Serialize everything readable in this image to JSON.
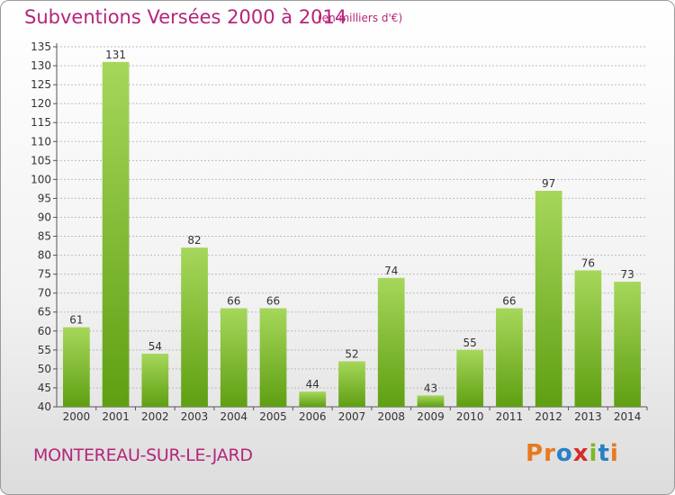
{
  "header": {
    "title": "Subventions Versées 2000 à 2014",
    "subtitle": "(en milliers d'€)"
  },
  "footer": {
    "commune": "MONTEREAU-SUR-LE-JARD",
    "logo": "Proxiti",
    "logo_colors": [
      "#e8791e",
      "#e8791e",
      "#2b7fc4",
      "#d62b2b",
      "#7cb92b",
      "#2b7fc4",
      "#e8791e"
    ]
  },
  "colors": {
    "title": "#b5257a",
    "bar_light": "#a6d75b",
    "bar_dark": "#5f9f12",
    "grid": "#bdbdbd"
  },
  "chart_data": {
    "type": "bar",
    "title": "Subventions Versées 2000 à 2014",
    "subtitle": "(en milliers d'€)",
    "categories": [
      "2000",
      "2001",
      "2002",
      "2003",
      "2004",
      "2005",
      "2006",
      "2007",
      "2008",
      "2009",
      "2010",
      "2011",
      "2012",
      "2013",
      "2014"
    ],
    "values": [
      61,
      131,
      54,
      82,
      66,
      66,
      44,
      52,
      74,
      43,
      55,
      66,
      97,
      76,
      73
    ],
    "ylim": [
      40,
      135
    ],
    "ytick_step": 5,
    "grid": true,
    "xlabel": "",
    "ylabel": ""
  }
}
